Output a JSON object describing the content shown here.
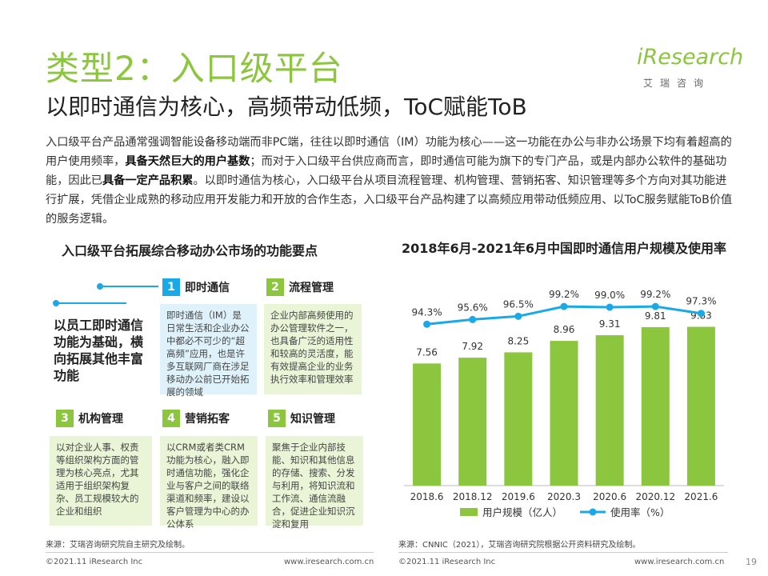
{
  "header": {
    "title": "类型2：入口级平台",
    "subtitle": "以即时通信为核心，高频带动低频，ToC赋能ToB"
  },
  "logo": {
    "brand": "iResearch",
    "cn": "艾瑞咨询"
  },
  "intro": {
    "p1": "入口级平台产品通常强调智能设备移动端而非PC端，往往以即时通信（IM）功能为核心——这一功能在办公与非办公场景下均有着超高的用户使用频率，",
    "b1": "具备天然巨大的用户基数",
    "p2": "；而对于入口级平台供应商而言，即时通信可能为旗下的专门产品，或是内部办公软件的基础功能，因此已",
    "b2": "具备一定产品积累",
    "p3": "。以即时通信为核心，入口级平台从项目流程管理、机构管理、营销拓客、知识管理等多个方向对其功能进行扩展，凭借企业成熟的移动应用开发能力和开放的合作生态，入口级平台产品构建了以高频应用带动低频应用、以ToC服务赋能ToB价值的服务逻辑。"
  },
  "left": {
    "title": "入口级平台拓展综合移动办公市场的功能要点",
    "core": "以员工即时通信功能为基础，横向拓展其他丰富功能",
    "cards": [
      {
        "num": "1",
        "label": "即时通信",
        "body": "即时通信（IM）是日常生活和企业办公中都必不可少的“超高频”应用，也是许多互联网厂商在涉足移动办公前已开始拓展的领域"
      },
      {
        "num": "2",
        "label": "流程管理",
        "body": "企业内部高频使用的办公管理软件之一，也具备广泛的适用性和较高的灵活度，能有效提高企业的业务执行效率和管理效率"
      },
      {
        "num": "3",
        "label": "机构管理",
        "body": "以对企业人事、权责等组织架构方面的管理为核心亮点，尤其适用于组织架构复杂、员工规模较大的企业和组织"
      },
      {
        "num": "4",
        "label": "营销拓客",
        "body": "以CRM或者类CRM功能为核心，融入即时通信功能，强化企业与客户之间的联络渠道和频率，建设以客户管理为中心的办公体系"
      },
      {
        "num": "5",
        "label": "知识管理",
        "body": "聚焦于企业内部技能、知识和其他信息的存储、搜索、分发与利用，将知识流和工作流、通信流融合，促进企业知识沉淀和复用"
      }
    ],
    "source": "来源：艾瑞咨询研究院自主研究及绘制。"
  },
  "chart_data": {
    "type": "bar",
    "title": "2018年6月-2021年6月中国即时通信用户规模及使用率",
    "categories": [
      "2018.6",
      "2018.12",
      "2019.6",
      "2020.3",
      "2020.6",
      "2020.12",
      "2021.6"
    ],
    "series": [
      {
        "name": "用户规模（亿人）",
        "type": "bar",
        "color": "#8cc63f",
        "values": [
          7.56,
          7.92,
          8.25,
          8.96,
          9.31,
          9.81,
          9.83
        ],
        "labels": [
          "7.56",
          "7.92",
          "8.25",
          "8.96",
          "9.31",
          "9.81",
          "9.83"
        ]
      },
      {
        "name": "使用率（%）",
        "type": "line",
        "color": "#1ba8e6",
        "values": [
          94.3,
          95.6,
          96.5,
          99.2,
          99.0,
          99.2,
          97.3
        ],
        "labels": [
          "94.3%",
          "95.6%",
          "96.5%",
          "99.2%",
          "99.0%",
          "99.2%",
          "97.3%"
        ]
      }
    ],
    "bar_range": [
      0,
      10.5
    ],
    "line_range": [
      70,
      101
    ],
    "legend_position": "bottom",
    "grid": false
  },
  "right": {
    "source": "来源：CNNIC（2021），艾瑞咨询研究院根据公开资料研究及绘制。"
  },
  "footer": {
    "copyright_left": "©2021.11 iResearch Inc",
    "url_left": "www.iresearch.com.cn",
    "copyright_right": "©2021.11 iResearch Inc",
    "url_right": "www.iresearch.com.cn",
    "page": "19"
  }
}
